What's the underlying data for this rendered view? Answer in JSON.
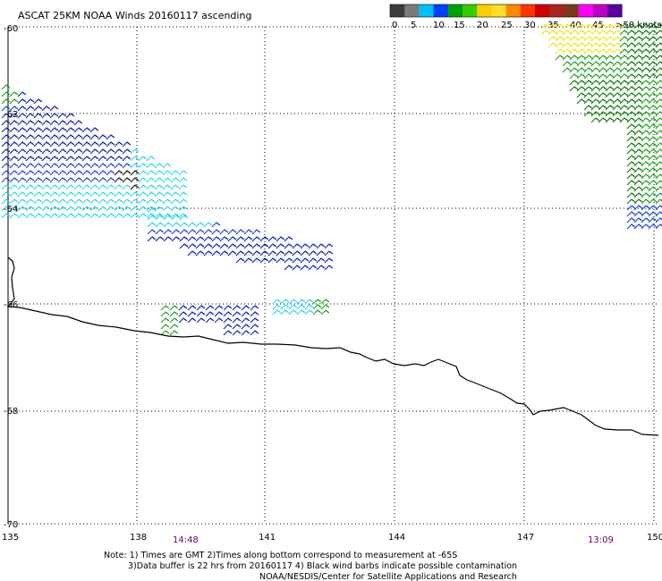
{
  "title": "ASCAT 25KM NOAA Winds 20160117 ascending",
  "legend": {
    "colors": [
      "#3c3c3c",
      "#7a7a7a",
      "#00bfff",
      "#0040ff",
      "#00a000",
      "#33cc00",
      "#ffcc00",
      "#ffdd22",
      "#ff8800",
      "#ff3300",
      "#cc0000",
      "#aa2222",
      "#7a3a1a",
      "#ff00ff",
      "#c000c0",
      "#5b00a0"
    ],
    "labels": [
      "0",
      "5",
      "10",
      "15",
      "20",
      "25",
      "30",
      "35",
      "40",
      "45",
      ">50 knots"
    ]
  },
  "latitudes": [
    "-60",
    "-62",
    "-64",
    "-66",
    "-68",
    "-70"
  ],
  "longitudes": [
    "135",
    "138",
    "141",
    "144",
    "147",
    "150"
  ],
  "pass_times": [
    {
      "text": "14:48",
      "color": "#660066"
    },
    {
      "text": "13:09",
      "color": "#660066"
    }
  ],
  "notes": [
    "Note: 1) Times are GMT 2)Times along bottom correspond to measurement at -65S",
    "3)Data buffer is 22 hrs from 20160117 4) Black wind barbs indicate possible contamination",
    "NOAA/NESDIS/Center for Satellite Applications and Research"
  ],
  "wind_colors": {
    "cyan": "#2ad4ee",
    "blue": "#1a3fe0",
    "darkblue": "#0a1fb0",
    "green": "#1aa01a",
    "darkgreen": "#0a7a0a",
    "yellow": "#f2e21a",
    "black": "#111111"
  }
}
